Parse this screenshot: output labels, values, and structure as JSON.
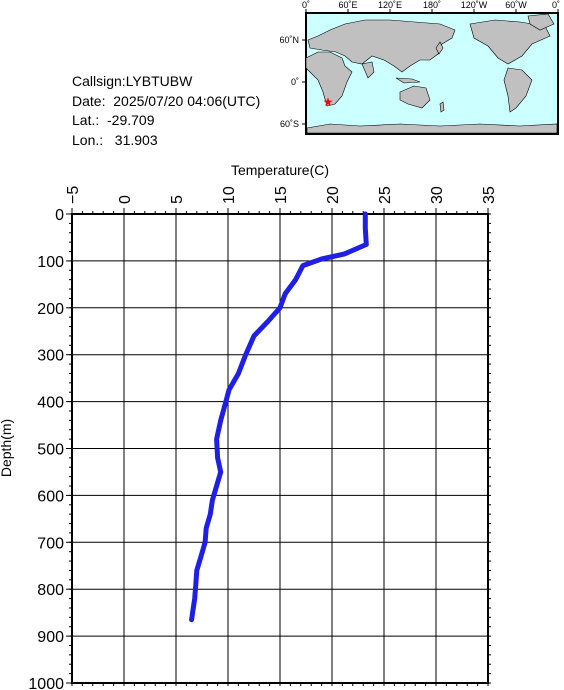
{
  "info": {
    "callsign": "Callsign:LYBTUBW",
    "date": "Date:  2025/07/20 04:06(UTC)",
    "lat": "Lat.:  -29.709",
    "lon": "Lon.:   31.903"
  },
  "map": {
    "lon_labels": [
      "0˚",
      "60˚E",
      "120˚E",
      "180˚",
      "120˚W",
      "60˚W",
      "0˚"
    ],
    "lat_labels": [
      "60˚N",
      "0˚",
      "60˚S"
    ],
    "ocean_color": "#ccffff",
    "land_color": "#c0c0c0",
    "marker_color": "#ff0000",
    "marker_icon": "star-icon"
  },
  "chart_data": {
    "type": "line",
    "xlabel": "Temperature(C)",
    "ylabel": "Depth(m)",
    "xlim": [
      -5,
      35
    ],
    "ylim": [
      0,
      1000
    ],
    "x_ticks": [
      -5,
      0,
      5,
      10,
      15,
      20,
      25,
      30,
      35
    ],
    "y_ticks": [
      0,
      100,
      200,
      300,
      400,
      500,
      600,
      700,
      800,
      900,
      1000
    ],
    "grid": true,
    "line_color": "#1f1fe6",
    "series": [
      {
        "points": [
          [
            23.2,
            0
          ],
          [
            23.2,
            30
          ],
          [
            23.3,
            65
          ],
          [
            21.2,
            85
          ],
          [
            19.0,
            96
          ],
          [
            17.2,
            110
          ],
          [
            16.5,
            140
          ],
          [
            15.5,
            170
          ],
          [
            15.0,
            200
          ],
          [
            13.8,
            230
          ],
          [
            12.5,
            260
          ],
          [
            11.7,
            300
          ],
          [
            11.0,
            340
          ],
          [
            10.1,
            375
          ],
          [
            9.8,
            400
          ],
          [
            9.3,
            440
          ],
          [
            8.9,
            480
          ],
          [
            9.0,
            520
          ],
          [
            9.3,
            550
          ],
          [
            8.9,
            580
          ],
          [
            8.5,
            610
          ],
          [
            8.3,
            640
          ],
          [
            7.9,
            670
          ],
          [
            7.8,
            700
          ],
          [
            7.4,
            730
          ],
          [
            7.0,
            760
          ],
          [
            6.9,
            790
          ],
          [
            6.8,
            820
          ],
          [
            6.6,
            850
          ],
          [
            6.5,
            865
          ]
        ]
      }
    ]
  }
}
